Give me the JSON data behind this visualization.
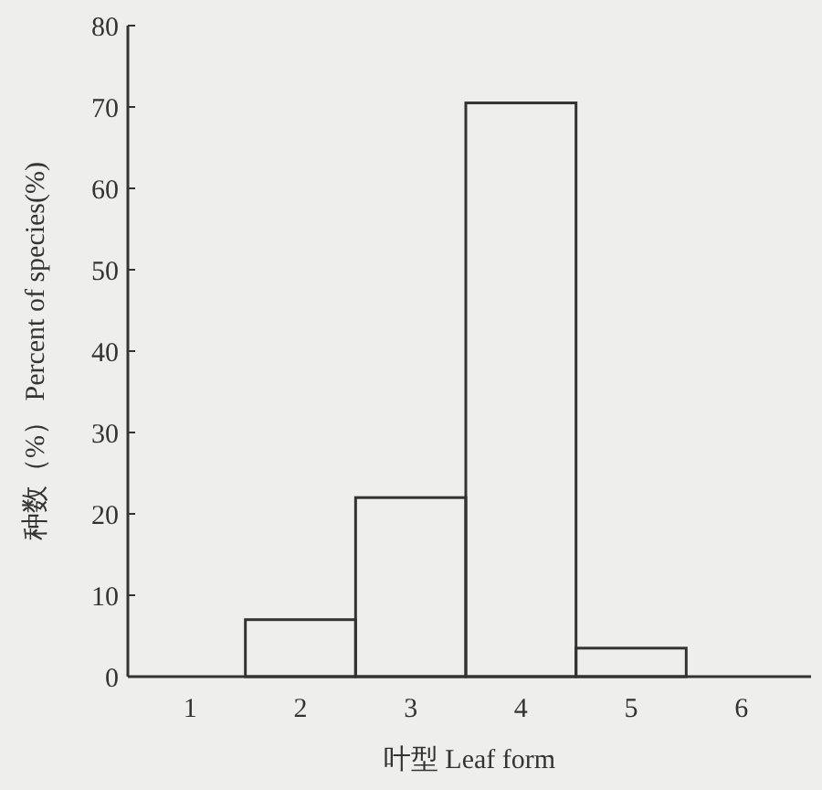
{
  "chart_data": {
    "type": "bar",
    "categories": [
      "1",
      "2",
      "3",
      "4",
      "5",
      "6"
    ],
    "values": [
      0,
      7,
      22,
      70.5,
      3.5,
      0
    ],
    "color": "#333333",
    "ylim": [
      0,
      80
    ],
    "yticks": [
      0,
      10,
      20,
      30,
      40,
      50,
      60,
      70,
      80
    ],
    "xlabel": "叶型  Leaf form",
    "ylabel": "种数（%）   Percent of species(%)",
    "grid": false
  }
}
